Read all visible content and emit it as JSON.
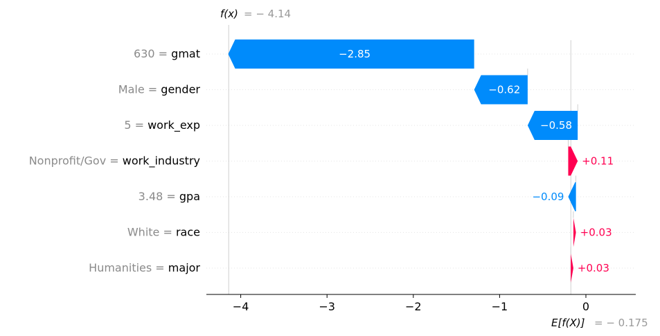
{
  "chart_data": {
    "type": "waterfall",
    "fx_label": "f(x)",
    "fx_value": "= − 4.14",
    "ex_label": "E[f(X)]",
    "ex_value": "= − 0.175",
    "base_value": -0.175,
    "final_value": -4.14,
    "x_ticks": [
      "−4",
      "−3",
      "−2",
      "−1",
      "0"
    ],
    "x_tick_values": [
      -4,
      -3,
      -2,
      -1,
      0
    ],
    "xlim": [
      -4.4,
      0.6
    ],
    "features": [
      {
        "value": "630",
        "name": "gmat",
        "shap": -2.85,
        "label": "−2.85"
      },
      {
        "value": "Male",
        "name": "gender",
        "shap": -0.62,
        "label": "−0.62"
      },
      {
        "value": "5",
        "name": "work_exp",
        "shap": -0.58,
        "label": "−0.58"
      },
      {
        "value": "Nonprofit/Gov",
        "name": "work_industry",
        "shap": 0.11,
        "label": "+0.11"
      },
      {
        "value": "3.48",
        "name": "gpa",
        "shap": -0.09,
        "label": "−0.09"
      },
      {
        "value": "White",
        "name": "race",
        "shap": 0.03,
        "label": "+0.03"
      },
      {
        "value": "Humanities",
        "name": "major",
        "shap": 0.03,
        "label": "+0.03"
      }
    ],
    "colors": {
      "negative": "#008bfb",
      "positive": "#ff0051"
    }
  }
}
